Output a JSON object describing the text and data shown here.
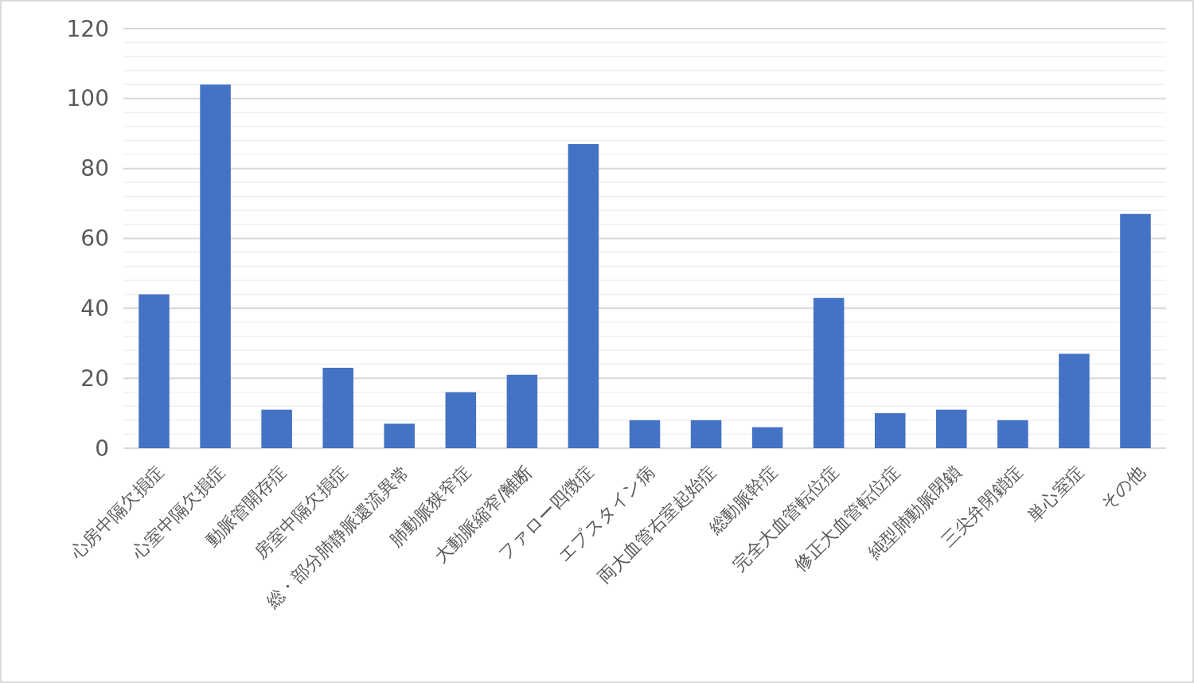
{
  "chart_data": {
    "type": "bar",
    "categories": [
      "心房中隔欠損症",
      "心室中隔欠損症",
      "動脈管開存症",
      "房室中隔欠損症",
      "総・部分肺静脈還流異常",
      "肺動脈狭窄症",
      "大動脈縮窄/離断",
      "ファロー四徴症",
      "エプスタイン病",
      "両大血管右室起始症",
      "総動脈幹症",
      "完全大血管転位症",
      "修正大血管転位症",
      "純型肺動脈閉鎖",
      "三尖弁閉鎖症",
      "単心室症",
      "その他"
    ],
    "values": [
      44,
      104,
      11,
      23,
      7,
      16,
      21,
      87,
      8,
      8,
      6,
      43,
      10,
      11,
      8,
      27,
      67
    ],
    "color": "#4472c4",
    "ylim": [
      0,
      120
    ],
    "yticks": [
      0,
      {
        "value": 4,
        "label": null
      },
      {
        "value": 8,
        "label": null
      },
      {
        "value": 12,
        "label": null
      },
      {
        "value": 16,
        "label": null
      },
      20,
      {
        "value": 24,
        "label": null
      },
      {
        "value": 28,
        "label": null
      },
      {
        "value": 32,
        "label": null
      },
      {
        "value": 36,
        "label": null
      },
      40,
      {
        "value": 44,
        "label": null
      },
      {
        "value": 48,
        "label": null
      },
      {
        "value": 52,
        "label": null
      },
      {
        "value": 56,
        "label": null
      },
      60,
      {
        "value": 64,
        "label": null
      },
      {
        "value": 68,
        "label": null
      },
      {
        "value": 72,
        "label": null
      },
      {
        "value": 76,
        "label": null
      },
      80,
      {
        "value": 84,
        "label": null
      },
      {
        "value": 88,
        "label": null
      },
      {
        "value": 92,
        "label": null
      },
      {
        "value": 96,
        "label": null
      },
      100,
      {
        "value": 104,
        "label": null
      },
      {
        "value": 108,
        "label": null
      },
      {
        "value": 112,
        "label": null
      },
      {
        "value": 116,
        "label": null
      },
      120
    ],
    "grid": "y"
  }
}
